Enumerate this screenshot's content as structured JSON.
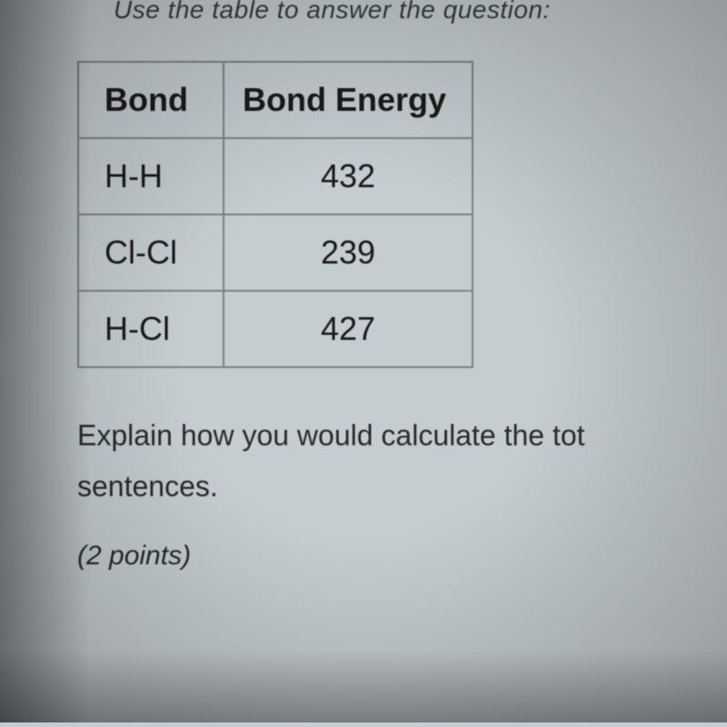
{
  "topText": "Use the table to answer the question:",
  "table": {
    "headers": [
      "Bond",
      "Bond Energy"
    ],
    "rows": [
      [
        "H-H",
        "432"
      ],
      [
        "Cl-Cl",
        "239"
      ],
      [
        "H-Cl",
        "427"
      ]
    ],
    "borderColor": "#7a8285",
    "headerFontSize": 36,
    "cellFontSize": 36,
    "textColor": "#1a1a1a"
  },
  "bottomText": {
    "line1": "Explain how you would calculate the tot",
    "line2": "sentences."
  },
  "points": "(2 points)",
  "colors": {
    "background": "#c5cdd0",
    "text": "#2a2a2a"
  }
}
